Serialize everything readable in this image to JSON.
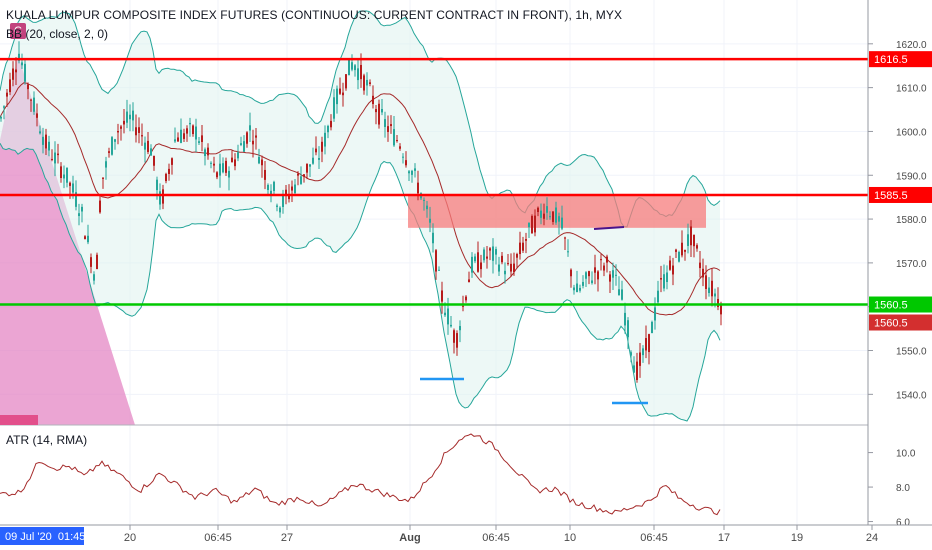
{
  "header": {
    "title": "KUALA LUMPUR COMPOSITE INDEX FUTURES (CONTINUOUS: CURRENT CONTRACT IN FRONT), 1h, MYX",
    "symbol_badge": "C",
    "overlay_indicator": "BB (20, close, 2, 0)"
  },
  "lower_pane": {
    "indicator_label": "ATR (14, RMA)"
  },
  "chart_data": {
    "type": "candlestick",
    "price_axis": {
      "ticks": [
        1540,
        1550,
        1560,
        1570,
        1580,
        1590,
        1600,
        1610,
        1620
      ],
      "range": [
        1533,
        1630
      ]
    },
    "time_axis": {
      "ticks": [
        "20",
        "06:45",
        "27",
        "Aug",
        "06:45",
        "10",
        "06:45",
        "17",
        "19",
        "24"
      ],
      "crosshair_label": "09 Jul '20  01:45"
    },
    "atr_axis": {
      "ticks": [
        6.0,
        8.0,
        10.0
      ],
      "range": [
        5.8,
        11.6
      ]
    },
    "horizontal_levels": [
      {
        "price": 1616.5,
        "label": "1616.5",
        "color": "#ff0000"
      },
      {
        "price": 1585.5,
        "label": "1585.5",
        "color": "#ff0000"
      },
      {
        "price": 1560.5,
        "label": "1560.5",
        "color": "#00c800"
      }
    ],
    "last_price": {
      "value": 1560.5,
      "label": "1560.5",
      "color": "#d32f2f"
    },
    "resistance_zone": {
      "top": 1585.5,
      "bottom": 1578,
      "color": "#f77c7c"
    },
    "colors": {
      "up": "#26a69a",
      "down": "#b71c1c",
      "bb_band": "#26a69a",
      "bb_basis": "#a52a2a",
      "atr": "#a52a2a"
    }
  }
}
